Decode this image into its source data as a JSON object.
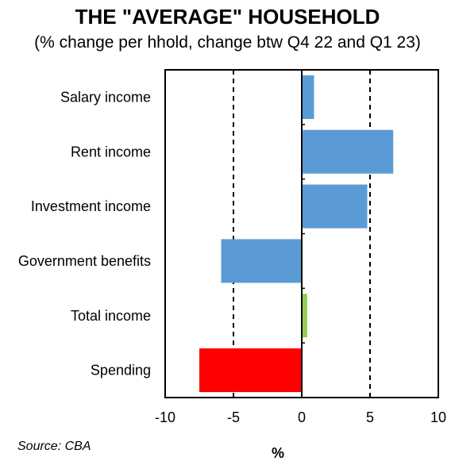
{
  "header": {
    "title": "THE \"AVERAGE\" HOUSEHOLD",
    "subtitle": "(% change per hhold, change btw Q4 22 and Q1 23)"
  },
  "footer": {
    "source": "Source: CBA"
  },
  "chart_data": {
    "type": "bar",
    "orientation": "horizontal",
    "title": "THE \"AVERAGE\" HOUSEHOLD",
    "subtitle": "(% change per hhold, change btw Q4 22 and Q1 23)",
    "xlabel": "%",
    "ylabel": "",
    "categories": [
      "Salary income",
      "Rent income",
      "Investment income",
      "Government benefits",
      "Total income",
      "Spending"
    ],
    "values": [
      0.9,
      6.7,
      4.8,
      -5.9,
      0.4,
      -7.5
    ],
    "bar_colors": [
      "#5b9bd5",
      "#5b9bd5",
      "#5b9bd5",
      "#5b9bd5",
      "#92d050",
      "#ff0000"
    ],
    "xlim": [
      -10,
      10
    ],
    "xticks": [
      -10,
      -5,
      0,
      5,
      10
    ],
    "reference_lines": [
      -5,
      5
    ],
    "reference_line_style": "dashed",
    "grid": false,
    "legend": "none"
  }
}
